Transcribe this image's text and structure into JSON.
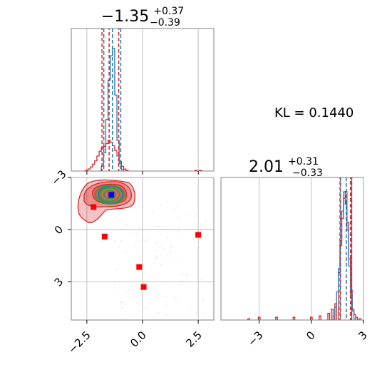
{
  "colors": {
    "hist_blue": "#1f77b4",
    "hist_red": "#d62728",
    "contour_green": "#2ca02c",
    "marker_red": "#ff0000",
    "marker_blue": "#0000ff",
    "grid": "#b0b0b0",
    "frame": "#808080"
  },
  "chart_data": {
    "type": "corner",
    "panel_top": {
      "title": {
        "main": "−1.35",
        "sup": "+0.37",
        "sub": "−0.39"
      },
      "xlim": [
        -3.2,
        3.2
      ],
      "grid_x": [
        -2.5,
        0.0,
        2.5
      ],
      "blue_lines": [
        -1.74,
        -1.35,
        -0.98
      ],
      "red_lines": [
        -1.82,
        -1.5,
        -1.07
      ],
      "blue_hist": [
        [
          -1.9,
          0.0
        ],
        [
          -1.8,
          0.04
        ],
        [
          -1.7,
          0.15
        ],
        [
          -1.6,
          0.42
        ],
        [
          -1.5,
          0.74
        ],
        [
          -1.4,
          0.94
        ],
        [
          -1.3,
          1.0
        ],
        [
          -1.2,
          0.62
        ],
        [
          -1.1,
          0.25
        ],
        [
          -1.0,
          0.06
        ],
        [
          -0.9,
          0.01
        ]
      ],
      "red_hist": [
        [
          -2.6,
          0.0
        ],
        [
          -2.5,
          0.01
        ],
        [
          -2.4,
          0.03
        ],
        [
          -2.3,
          0.06
        ],
        [
          -2.2,
          0.1
        ],
        [
          -2.1,
          0.15
        ],
        [
          -2.0,
          0.22
        ],
        [
          -1.9,
          0.29
        ],
        [
          -1.8,
          0.34
        ],
        [
          -1.7,
          0.36
        ],
        [
          -1.6,
          0.4
        ],
        [
          -1.5,
          0.45
        ],
        [
          -1.4,
          0.42
        ],
        [
          -1.3,
          0.37
        ],
        [
          -1.2,
          0.3
        ],
        [
          -1.1,
          0.22
        ],
        [
          -1.0,
          0.14
        ],
        [
          -0.9,
          0.07
        ],
        [
          -0.8,
          0.03
        ],
        [
          -0.7,
          0.01
        ],
        [
          2.4,
          0.01
        ],
        [
          2.6,
          0.01
        ]
      ]
    },
    "panel_scatter": {
      "xlim": [
        -3.2,
        3.2
      ],
      "ylim": [
        -5.2,
        3.0
      ],
      "x_ticks": [
        "−2.5",
        "0.0",
        "2.5"
      ],
      "y_ticks": [
        "−3",
        "0",
        "3"
      ],
      "grid_x": [
        -2.5,
        0.0,
        2.5
      ],
      "grid_y": [
        3,
        0,
        -3
      ],
      "red_markers": [
        [
          -2.2,
          1.3
        ],
        [
          -1.7,
          -0.4
        ],
        [
          -0.15,
          -2.15
        ],
        [
          0.05,
          -3.3
        ],
        [
          2.5,
          -0.3
        ]
      ],
      "blue_marker": [
        -1.4,
        2.0
      ]
    },
    "panel_right": {
      "title": {
        "main": "2.01",
        "sup": "+0.31",
        "sub": "−0.33"
      },
      "xlim": [
        -5.2,
        3.0
      ],
      "x_ticks": [
        "−3",
        "0",
        "3"
      ],
      "grid_x": [
        -3,
        0,
        3
      ],
      "blue_lines": [
        1.68,
        2.01,
        2.32
      ],
      "red_lines": [
        1.65,
        2.25,
        2.32
      ],
      "blue_hist": [
        [
          1.2,
          0.0
        ],
        [
          1.3,
          0.03
        ],
        [
          1.4,
          0.1
        ],
        [
          1.5,
          0.22
        ],
        [
          1.6,
          0.4
        ],
        [
          1.7,
          0.62
        ],
        [
          1.8,
          0.85
        ],
        [
          1.9,
          1.0
        ],
        [
          2.0,
          0.9
        ],
        [
          2.1,
          0.7
        ],
        [
          2.2,
          0.42
        ],
        [
          2.3,
          0.2
        ],
        [
          2.4,
          0.07
        ],
        [
          2.5,
          0.01
        ]
      ],
      "red_hist": [
        [
          -3.6,
          0.01
        ],
        [
          -3.0,
          0.02
        ],
        [
          -2.0,
          0.02
        ],
        [
          -1.0,
          0.02
        ],
        [
          0.0,
          0.02
        ],
        [
          0.5,
          0.03
        ],
        [
          1.0,
          0.05
        ],
        [
          1.2,
          0.08
        ],
        [
          1.4,
          0.12
        ],
        [
          1.6,
          0.35
        ],
        [
          1.7,
          0.55
        ],
        [
          1.8,
          0.75
        ],
        [
          1.9,
          0.9
        ],
        [
          2.0,
          0.95
        ],
        [
          2.1,
          0.72
        ],
        [
          2.2,
          0.45
        ],
        [
          2.3,
          0.22
        ],
        [
          2.4,
          0.08
        ],
        [
          2.5,
          0.04
        ],
        [
          2.6,
          0.02
        ],
        [
          2.8,
          0.01
        ]
      ]
    },
    "annotation": "KL = 0.1440"
  }
}
